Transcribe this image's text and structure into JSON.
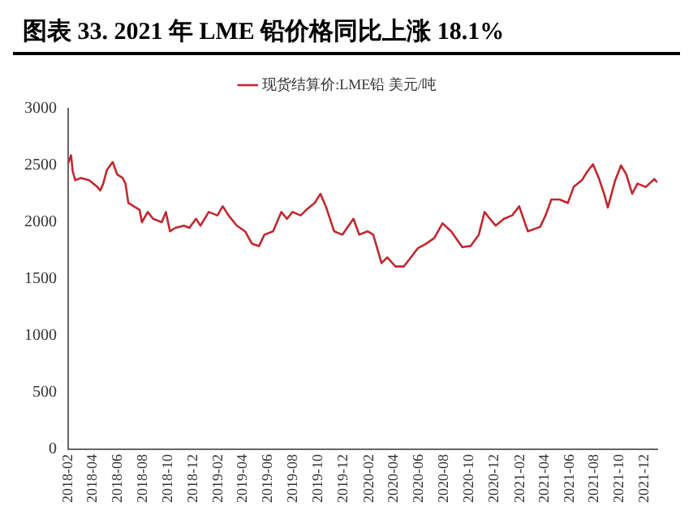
{
  "chart_data": {
    "type": "line",
    "title": "图表 33. 2021 年 LME 铅价格同比上涨 18.1%",
    "x": [
      "2018-02-01",
      "2018-02-08",
      "2018-02-12",
      "2018-02-18",
      "2018-03-04",
      "2018-03-24",
      "2018-04-13",
      "2018-04-20",
      "2018-04-27",
      "2018-05-06",
      "2018-05-20",
      "2018-05-31",
      "2018-06-13",
      "2018-06-20",
      "2018-06-27",
      "2018-07-10",
      "2018-07-24",
      "2018-07-30",
      "2018-08-13",
      "2018-08-26",
      "2018-09-16",
      "2018-09-26",
      "2018-10-06",
      "2018-10-19",
      "2018-11-09",
      "2018-11-22",
      "2018-12-08",
      "2018-12-19",
      "2019-01-08",
      "2019-01-29",
      "2019-02-11",
      "2019-02-25",
      "2019-03-17",
      "2019-04-06",
      "2019-04-23",
      "2019-05-10",
      "2019-05-23",
      "2019-06-13",
      "2019-07-03",
      "2019-07-17",
      "2019-07-30",
      "2019-08-19",
      "2019-09-02",
      "2019-09-22",
      "2019-10-06",
      "2019-10-19",
      "2019-11-08",
      "2019-11-28",
      "2019-12-25",
      "2020-01-08",
      "2020-01-28",
      "2020-02-11",
      "2020-03-02",
      "2020-03-16",
      "2020-04-05",
      "2020-04-25",
      "2020-05-08",
      "2020-05-29",
      "2020-06-18",
      "2020-07-08",
      "2020-07-28",
      "2020-08-18",
      "2020-09-14",
      "2020-10-04",
      "2020-10-24",
      "2020-11-07",
      "2020-11-20",
      "2020-12-04",
      "2020-12-24",
      "2021-01-13",
      "2021-01-30",
      "2021-02-20",
      "2021-03-22",
      "2021-04-04",
      "2021-04-18",
      "2021-05-08",
      "2021-05-28",
      "2021-06-11",
      "2021-07-01",
      "2021-07-15",
      "2021-07-28",
      "2021-08-11",
      "2021-08-24",
      "2021-09-02",
      "2021-09-20",
      "2021-10-04",
      "2021-10-17",
      "2021-10-31",
      "2021-11-13",
      "2021-12-03",
      "2021-12-24",
      "2021-12-31"
    ],
    "series": [
      {
        "name": "现货结算价:LME铅 美元/吨",
        "color": "#c0282f",
        "values": [
          2520,
          2590,
          2450,
          2370,
          2390,
          2370,
          2310,
          2280,
          2340,
          2460,
          2530,
          2420,
          2390,
          2340,
          2170,
          2140,
          2110,
          2000,
          2090,
          2030,
          2000,
          2090,
          1920,
          1950,
          1970,
          1950,
          2030,
          1970,
          2090,
          2060,
          2140,
          2060,
          1970,
          1920,
          1810,
          1790,
          1890,
          1920,
          2090,
          2030,
          2090,
          2060,
          2110,
          2170,
          2250,
          2140,
          1920,
          1890,
          2030,
          1890,
          1920,
          1890,
          1640,
          1690,
          1610,
          1610,
          1670,
          1770,
          1810,
          1860,
          1990,
          1920,
          1780,
          1790,
          1890,
          2090,
          2030,
          1970,
          2030,
          2060,
          2140,
          1920,
          1960,
          2060,
          2200,
          2200,
          2170,
          2310,
          2370,
          2450,
          2510,
          2390,
          2250,
          2130,
          2370,
          2500,
          2420,
          2250,
          2340,
          2310,
          2380,
          2350
        ]
      }
    ],
    "xlim": [
      "2018-02-01",
      "2021-12-31"
    ],
    "xticks": [
      "2018-02",
      "2018-04",
      "2018-06",
      "2018-08",
      "2018-10",
      "2018-12",
      "2019-02",
      "2019-04",
      "2019-06",
      "2019-08",
      "2019-10",
      "2019-12",
      "2020-02",
      "2020-04",
      "2020-06",
      "2020-08",
      "2020-10",
      "2020-12",
      "2021-02",
      "2021-04",
      "2021-06",
      "2021-08",
      "2021-10",
      "2021-12"
    ],
    "ylim": [
      0,
      3000
    ],
    "yticks": [
      0,
      500,
      1000,
      1500,
      2000,
      2500,
      3000
    ],
    "grid": false,
    "legend": "top",
    "marker": "none",
    "line_style": "solid"
  }
}
